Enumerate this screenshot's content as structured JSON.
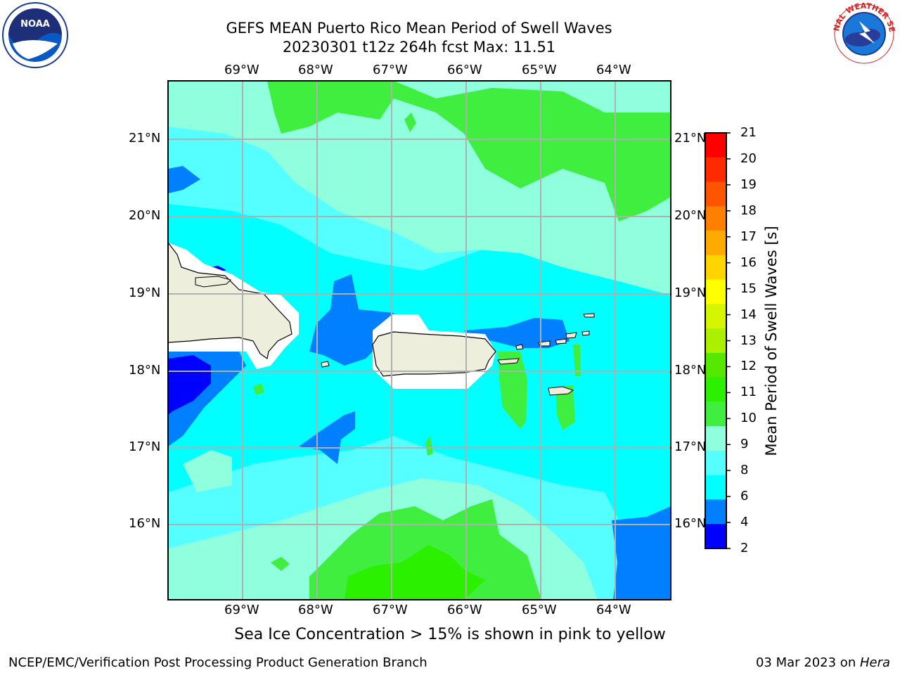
{
  "header": {
    "title_line1": "GEFS MEAN Puerto Rico Mean Period of Swell Waves",
    "title_line2": "20230301 t12z 264h fcst   Max: 11.51"
  },
  "map": {
    "lon_labels": [
      "69°W",
      "68°W",
      "67°W",
      "66°W",
      "65°W",
      "64°W"
    ],
    "lat_labels": [
      "21°N",
      "20°N",
      "19°N",
      "18°N",
      "17°N",
      "16°N"
    ],
    "ocean_color": "#00ffff",
    "land_color": "#eeeedd"
  },
  "colorbar": {
    "title": "Mean Period of Swell Waves [s]",
    "ticks": [
      "21",
      "20",
      "19",
      "18",
      "17",
      "16",
      "15",
      "14",
      "13",
      "12",
      "11",
      "10",
      "9",
      "8",
      "6",
      "4",
      "2"
    ],
    "colors": [
      "#ff0000",
      "#ff2a00",
      "#ff5500",
      "#ff8000",
      "#ffaa00",
      "#ffd500",
      "#ffff00",
      "#d5f500",
      "#aaf000",
      "#55e800",
      "#2bf000",
      "#40ee40",
      "#90ffdd",
      "#55ffff",
      "#00ffff",
      "#0080ff",
      "#0000ff"
    ]
  },
  "footnote": "Sea Ice Concentration > 15% is shown in pink to yellow",
  "footer": {
    "left": "NCEP/EMC/Verification Post Processing Product Generation Branch",
    "right_date": "03 Mar 2023 on ",
    "right_host": "Hera"
  },
  "logos": {
    "noaa_text": "NOAA",
    "nws_text": "NATIONAL WEATHER SERVICE"
  }
}
